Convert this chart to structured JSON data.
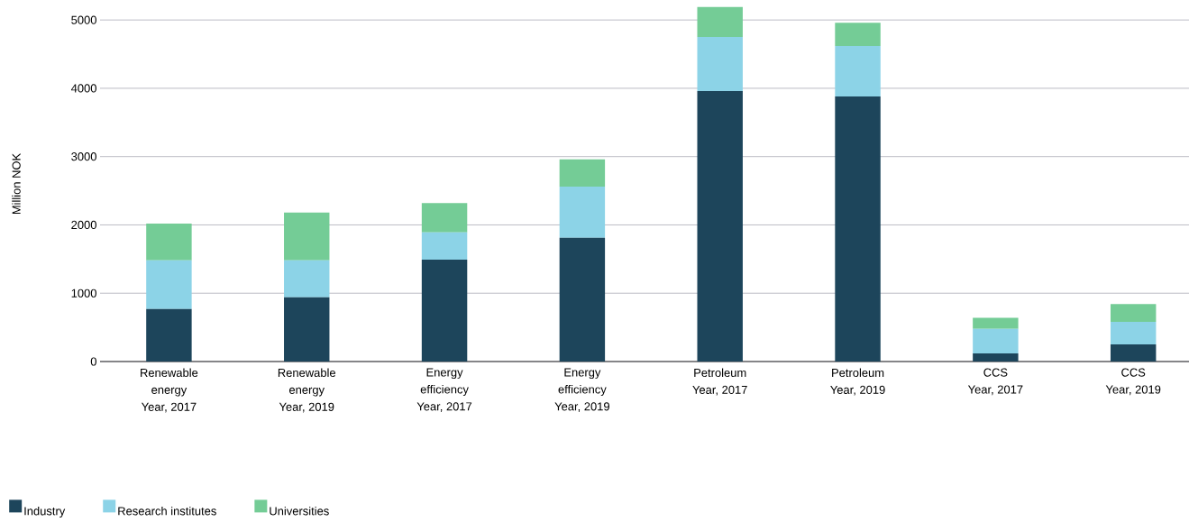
{
  "chart_data": {
    "type": "bar",
    "stacked": true,
    "ylabel": "Million NOK",
    "categories": [
      "Renewable\nenergy\nYear, 2017",
      "Renewable\nenergy\nYear, 2019",
      "Energy\nefficiency\nYear, 2017",
      "Energy\nefficiency\nYear, 2019",
      "Petroleum\nYear, 2017",
      "Petroleum\nYear, 2019",
      "CCS\nYear, 2017",
      "CCS\nYear, 2019"
    ],
    "series": [
      {
        "name": "Industry",
        "color": "#1d455b",
        "values": [
          770,
          940,
          1490,
          1810,
          3960,
          3880,
          120,
          250
        ]
      },
      {
        "name": "Research institutes",
        "color": "#8cd3e7",
        "values": [
          710,
          540,
          400,
          750,
          790,
          740,
          360,
          330
        ]
      },
      {
        "name": "Universities",
        "color": "#74cc96",
        "values": [
          540,
          700,
          430,
          400,
          440,
          340,
          160,
          260
        ]
      }
    ],
    "ylim": [
      0,
      5200
    ],
    "yticks": [
      0,
      1000,
      2000,
      3000,
      4000,
      5000
    ],
    "grid": "y",
    "legend": "bottom left"
  }
}
